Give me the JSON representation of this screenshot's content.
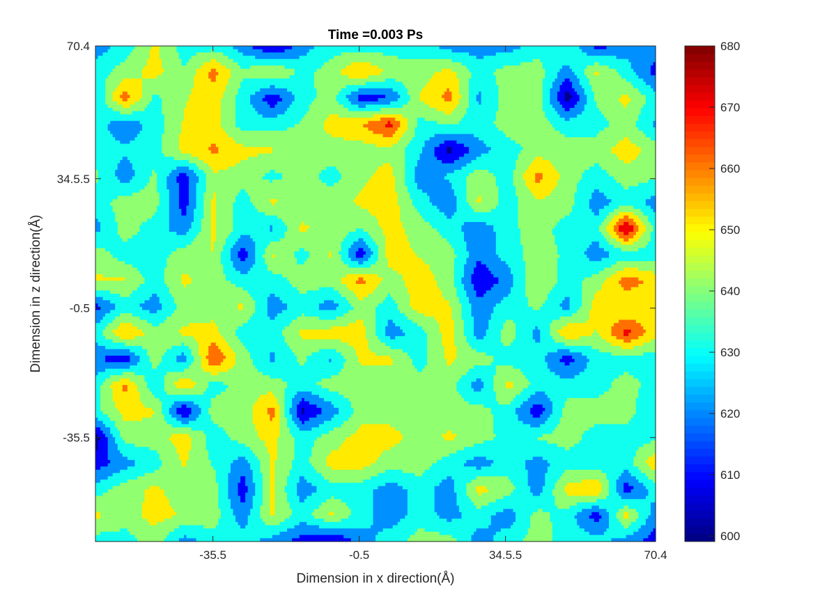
{
  "chart_data": {
    "type": "heatmap",
    "subtype": "filled-contour",
    "title": "Time =0.003 Ps",
    "xlabel": "Dimension in x direction(Å)",
    "ylabel": "Dimension in z direction(Å)",
    "xlim": [
      -63.6,
      70.4
    ],
    "ylim": [
      -63.6,
      70.4
    ],
    "x_ticks": [
      "-35.5",
      "-0.5",
      "34.5.5",
      "70.4"
    ],
    "x_tick_values": [
      -35.5,
      -0.5,
      34.5,
      70.4
    ],
    "y_ticks": [
      "70.4",
      "34.5.5",
      "-0.5",
      "-35.5"
    ],
    "y_tick_values": [
      70.4,
      34.5,
      -0.5,
      -35.5
    ],
    "grid": false,
    "colormap": "jet",
    "colorbar": {
      "placement": "right",
      "clim": [
        599.1,
        680
      ],
      "ticks": [
        "600",
        "610",
        "620",
        "630",
        "640",
        "650",
        "660",
        "670",
        "680"
      ],
      "tick_values": [
        600,
        610,
        620,
        630,
        640,
        650,
        660,
        670,
        680
      ]
    },
    "contour_levels": [
      606,
      616,
      626,
      636,
      646,
      656,
      666,
      676
    ],
    "band_colors": [
      "#00008f",
      "#0000ff",
      "#0090ff",
      "#10ffef",
      "#90ff70",
      "#ffea00",
      "#ff7000",
      "#f00000",
      "#800000"
    ],
    "grid_rows_order": "top-to-bottom (z from 70.4 down to -63.6), columns left-to-right (x from -63.6 to 70.4)",
    "z_values": [
      [
        620,
        630,
        648,
        631,
        631,
        621,
        603,
        621,
        631,
        631,
        631,
        631,
        621,
        621,
        621,
        631,
        637,
        611,
        621,
        621
      ],
      [
        631,
        641,
        650,
        637,
        660,
        638,
        648,
        633,
        641,
        658,
        643,
        641,
        650,
        631,
        641,
        641,
        621,
        648,
        631,
        612
      ],
      [
        625,
        662,
        633,
        645,
        652,
        631,
        608,
        631,
        641,
        610,
        615,
        647,
        660,
        624,
        641,
        641,
        600,
        638,
        649,
        631
      ],
      [
        631,
        618,
        631,
        647,
        650,
        631,
        631,
        637,
        650,
        656,
        670,
        632,
        637,
        631,
        641,
        641,
        631,
        632,
        641,
        624
      ],
      [
        631,
        628,
        631,
        650,
        658,
        649,
        647,
        641,
        641,
        641,
        643,
        628,
        602,
        622,
        631,
        641,
        641,
        641,
        652,
        641
      ],
      [
        638,
        620,
        638,
        610,
        644,
        641,
        633,
        641,
        632,
        644,
        650,
        620,
        628,
        642,
        631,
        660,
        641,
        631,
        641,
        638
      ],
      [
        631,
        641,
        641,
        610,
        648,
        631,
        648,
        641,
        641,
        648,
        652,
        631,
        618,
        648,
        631,
        645,
        641,
        620,
        631,
        622
      ],
      [
        622,
        641,
        631,
        620,
        648,
        631,
        624,
        648,
        641,
        637,
        650,
        641,
        631,
        618,
        633,
        641,
        631,
        631,
        679,
        631
      ],
      [
        641,
        631,
        630,
        642,
        646,
        608,
        648,
        632,
        647,
        608,
        652,
        645,
        641,
        618,
        631,
        641,
        634,
        620,
        630,
        631
      ],
      [
        648,
        647,
        631,
        648,
        641,
        631,
        631,
        641,
        641,
        660,
        641,
        652,
        641,
        607,
        620,
        647,
        631,
        641,
        662,
        652
      ],
      [
        612,
        631,
        620,
        641,
        641,
        648,
        620,
        631,
        620,
        641,
        631,
        652,
        647,
        620,
        631,
        638,
        622,
        652,
        645,
        652
      ],
      [
        631,
        658,
        641,
        648,
        650,
        631,
        631,
        648,
        652,
        652,
        620,
        631,
        652,
        620,
        642,
        622,
        658,
        645,
        670,
        650
      ],
      [
        618,
        608,
        641,
        620,
        667,
        641,
        624,
        638,
        624,
        648,
        648,
        631,
        648,
        641,
        631,
        631,
        610,
        631,
        631,
        631
      ],
      [
        631,
        660,
        627,
        656,
        631,
        641,
        641,
        631,
        641,
        641,
        641,
        641,
        641,
        620,
        650,
        631,
        631,
        631,
        641,
        631
      ],
      [
        634,
        650,
        647,
        603,
        641,
        640,
        660,
        603,
        620,
        641,
        641,
        641,
        641,
        640,
        631,
        608,
        641,
        641,
        641,
        625
      ],
      [
        600,
        641,
        641,
        652,
        630,
        641,
        650,
        631,
        641,
        650,
        650,
        641,
        648,
        641,
        632,
        637,
        641,
        631,
        631,
        633
      ],
      [
        610,
        622,
        631,
        647,
        635,
        620,
        648,
        631,
        650,
        650,
        641,
        641,
        631,
        620,
        631,
        622,
        631,
        631,
        631,
        654
      ],
      [
        631,
        641,
        648,
        641,
        641,
        610,
        648,
        620,
        631,
        631,
        620,
        631,
        620,
        650,
        641,
        620,
        650,
        656,
        610,
        631
      ],
      [
        648,
        641,
        650,
        645,
        641,
        620,
        648,
        631,
        648,
        631,
        620,
        631,
        622,
        631,
        620,
        640,
        631,
        610,
        650,
        620
      ],
      [
        631,
        631,
        641,
        621,
        631,
        631,
        621,
        611,
        603,
        621,
        631,
        641,
        641,
        621,
        631,
        641,
        631,
        631,
        621,
        611
      ]
    ]
  }
}
